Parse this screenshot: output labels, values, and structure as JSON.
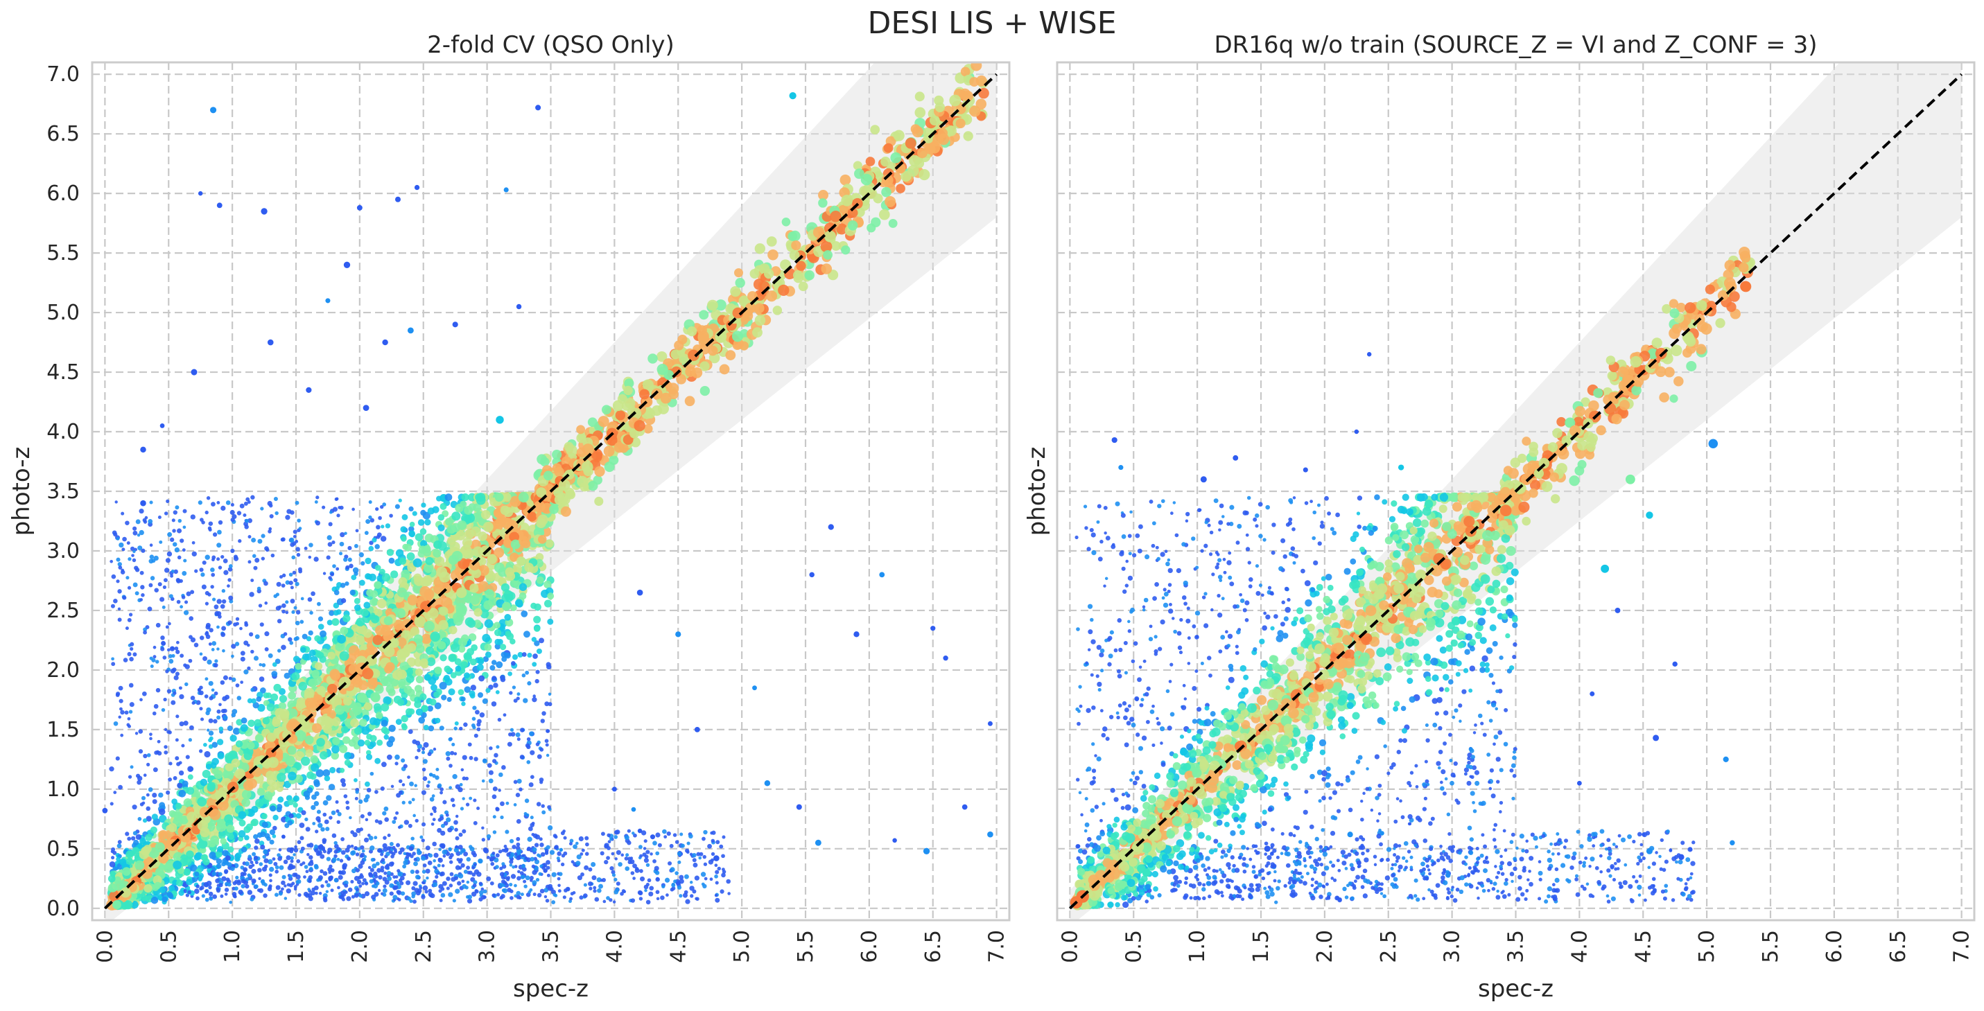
{
  "figure": {
    "suptitle": "DESI LIS + WISE"
  },
  "colors": {
    "panel_frame": "#cccccc",
    "grid": "#c8c8c8",
    "band_fill": "#dddddd",
    "identity_line": "#000000",
    "colormap": [
      "#2f5cf0",
      "#1e90f2",
      "#14c6e6",
      "#38e6c2",
      "#7df0a6",
      "#c9e68a",
      "#f7b062",
      "#f77a3c",
      "#f22a10"
    ]
  },
  "chart_data": [
    {
      "type": "scatter",
      "title": "2-fold CV (QSO Only)",
      "xlabel": "spec-z",
      "ylabel": "photo-z",
      "xlim": [
        -0.1,
        7.1
      ],
      "ylim": [
        -0.1,
        7.1
      ],
      "xticks": [
        "0.0",
        "0.5",
        "1.0",
        "1.5",
        "2.0",
        "2.5",
        "3.0",
        "3.5",
        "4.0",
        "4.5",
        "5.0",
        "5.5",
        "6.0",
        "6.5",
        "7.0"
      ],
      "yticks": [
        "0.0",
        "0.5",
        "1.0",
        "1.5",
        "2.0",
        "2.5",
        "3.0",
        "3.5",
        "4.0",
        "4.5",
        "5.0",
        "5.5",
        "6.0",
        "6.5",
        "7.0"
      ],
      "grid": true,
      "reference_line": "y = x",
      "tolerance_band": "shaded region around y = x",
      "color_encoding": "rainbow colormap (blue = outliers, red = close to y = x)",
      "dense_region": {
        "x": [
          0.05,
          3.5
        ],
        "y": [
          0.05,
          3.45
        ]
      },
      "highz_sequence": {
        "x": [
          3.4,
          6.9
        ],
        "y_spread": 0.25
      },
      "outlier_points": [
        {
          "x": 0.85,
          "y": 6.7
        },
        {
          "x": 0.75,
          "y": 6.0
        },
        {
          "x": 0.9,
          "y": 5.9
        },
        {
          "x": 1.25,
          "y": 5.85
        },
        {
          "x": 2.0,
          "y": 5.88
        },
        {
          "x": 2.3,
          "y": 5.95
        },
        {
          "x": 2.45,
          "y": 6.05
        },
        {
          "x": 3.15,
          "y": 6.03
        },
        {
          "x": 1.9,
          "y": 5.4
        },
        {
          "x": 1.75,
          "y": 5.1
        },
        {
          "x": 2.4,
          "y": 4.85
        },
        {
          "x": 2.2,
          "y": 4.75
        },
        {
          "x": 1.3,
          "y": 4.75
        },
        {
          "x": 1.6,
          "y": 4.35
        },
        {
          "x": 0.7,
          "y": 4.5
        },
        {
          "x": 3.25,
          "y": 5.05
        },
        {
          "x": 5.4,
          "y": 6.82
        },
        {
          "x": 3.4,
          "y": 6.72
        },
        {
          "x": 2.75,
          "y": 4.9
        },
        {
          "x": 0.45,
          "y": 4.05
        },
        {
          "x": 3.1,
          "y": 4.1
        },
        {
          "x": 2.05,
          "y": 4.2
        },
        {
          "x": 5.7,
          "y": 3.2
        },
        {
          "x": 5.55,
          "y": 2.8
        },
        {
          "x": 6.1,
          "y": 2.8
        },
        {
          "x": 6.5,
          "y": 2.35
        },
        {
          "x": 6.6,
          "y": 2.1
        },
        {
          "x": 5.9,
          "y": 2.3
        },
        {
          "x": 4.2,
          "y": 2.65
        },
        {
          "x": 4.5,
          "y": 2.3
        },
        {
          "x": 5.1,
          "y": 1.85
        },
        {
          "x": 4.65,
          "y": 1.5
        },
        {
          "x": 5.2,
          "y": 1.05
        },
        {
          "x": 5.45,
          "y": 0.85
        },
        {
          "x": 5.6,
          "y": 0.55
        },
        {
          "x": 6.2,
          "y": 0.57
        },
        {
          "x": 6.45,
          "y": 0.48
        },
        {
          "x": 4.8,
          "y": 0.42
        },
        {
          "x": 4.2,
          "y": 0.65
        },
        {
          "x": 4.3,
          "y": 0.6
        },
        {
          "x": 4.15,
          "y": 0.83
        },
        {
          "x": 6.95,
          "y": 1.55
        },
        {
          "x": 6.95,
          "y": 0.62
        },
        {
          "x": 0.0,
          "y": 0.82
        },
        {
          "x": 6.75,
          "y": 0.85
        },
        {
          "x": 4.0,
          "y": 1.0
        },
        {
          "x": 0.3,
          "y": 3.85
        },
        {
          "x": 0.3,
          "y": 3.4
        }
      ]
    },
    {
      "type": "scatter",
      "title": "DR16q w/o train (SOURCE_Z = VI and Z_CONF = 3)",
      "xlabel": "spec-z",
      "ylabel": "photo-z",
      "xlim": [
        -0.1,
        7.1
      ],
      "ylim": [
        -0.1,
        7.1
      ],
      "xticks": [
        "0.0",
        "0.5",
        "1.0",
        "1.5",
        "2.0",
        "2.5",
        "3.0",
        "3.5",
        "4.0",
        "4.5",
        "5.0",
        "5.5",
        "6.0",
        "6.5",
        "7.0"
      ],
      "yticks": [],
      "grid": true,
      "reference_line": "y = x",
      "tolerance_band": "shaded region around y = x",
      "color_encoding": "rainbow colormap (blue = outliers, red = close to y = x)",
      "dense_region": {
        "x": [
          0.05,
          3.5
        ],
        "y": [
          0.05,
          3.45
        ]
      },
      "highz_sequence": {
        "x": [
          3.4,
          5.35
        ],
        "y_spread": 0.25
      },
      "outlier_points": [
        {
          "x": 0.35,
          "y": 3.93
        },
        {
          "x": 0.4,
          "y": 3.7
        },
        {
          "x": 1.05,
          "y": 3.6
        },
        {
          "x": 1.85,
          "y": 3.68
        },
        {
          "x": 2.6,
          "y": 3.7
        },
        {
          "x": 2.35,
          "y": 4.65
        },
        {
          "x": 2.25,
          "y": 4.0
        },
        {
          "x": 1.3,
          "y": 3.78
        },
        {
          "x": 5.05,
          "y": 3.9
        },
        {
          "x": 4.4,
          "y": 3.6
        },
        {
          "x": 4.55,
          "y": 3.3
        },
        {
          "x": 4.2,
          "y": 2.85
        },
        {
          "x": 4.3,
          "y": 2.5
        },
        {
          "x": 4.75,
          "y": 2.05
        },
        {
          "x": 4.1,
          "y": 1.8
        },
        {
          "x": 4.6,
          "y": 1.43
        },
        {
          "x": 5.15,
          "y": 1.25
        },
        {
          "x": 4.55,
          "y": 0.48
        },
        {
          "x": 4.8,
          "y": 0.43
        },
        {
          "x": 5.2,
          "y": 0.55
        },
        {
          "x": 2.45,
          "y": 0.63
        },
        {
          "x": 2.2,
          "y": 0.62
        },
        {
          "x": 1.55,
          "y": 0.5
        },
        {
          "x": 0.6,
          "y": 0.3
        },
        {
          "x": 0.05,
          "y": 0.05
        },
        {
          "x": 0.1,
          "y": 0.1
        },
        {
          "x": 4.0,
          "y": 1.05
        }
      ]
    }
  ]
}
